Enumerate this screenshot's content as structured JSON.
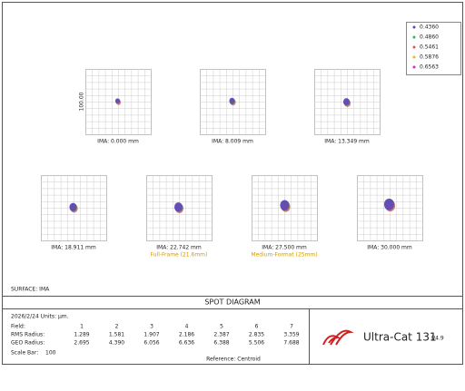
{
  "legend": [
    "0.4360",
    "0.4860",
    "0.5461",
    "0.5876",
    "0.6563"
  ],
  "y_scale_label": "100.00",
  "plots": [
    {
      "label": "IMA: 0.000 mm"
    },
    {
      "label": "IMA: 8.009 mm"
    },
    {
      "label": "IMA: 13.349 mm"
    },
    {
      "label": "IMA: 18.911 mm"
    },
    {
      "label": "IMA: 22.742 mm",
      "note": "Full-Frame (21.6mm)"
    },
    {
      "label": "IMA: 27.500 mm",
      "note": "Medium-Format (25mm)"
    },
    {
      "label": "IMA: 30.000 mm"
    }
  ],
  "surface": "SURFACE: IMA",
  "title": "SPOT DIAGRAM",
  "info": "2026/2/24 Units: µm.",
  "table": {
    "row_labels": [
      "Field:",
      "RMS Radius:",
      "GEO Radius:"
    ],
    "fields": [
      "1",
      "2",
      "3",
      "4",
      "5",
      "6",
      "7"
    ],
    "rms": [
      "1.289",
      "1.581",
      "1.907",
      "2.186",
      "2.387",
      "2.835",
      "3.359"
    ],
    "geo": [
      "2.695",
      "4.390",
      "6.056",
      "6.636",
      "6.388",
      "5.506",
      "7.688"
    ]
  },
  "scale_bar": {
    "label": "Scale Bar:",
    "value": "100"
  },
  "reference": "Reference: Centroid",
  "product": {
    "name": "Ultra-Cat 131",
    "focal": "f/4.9"
  }
}
